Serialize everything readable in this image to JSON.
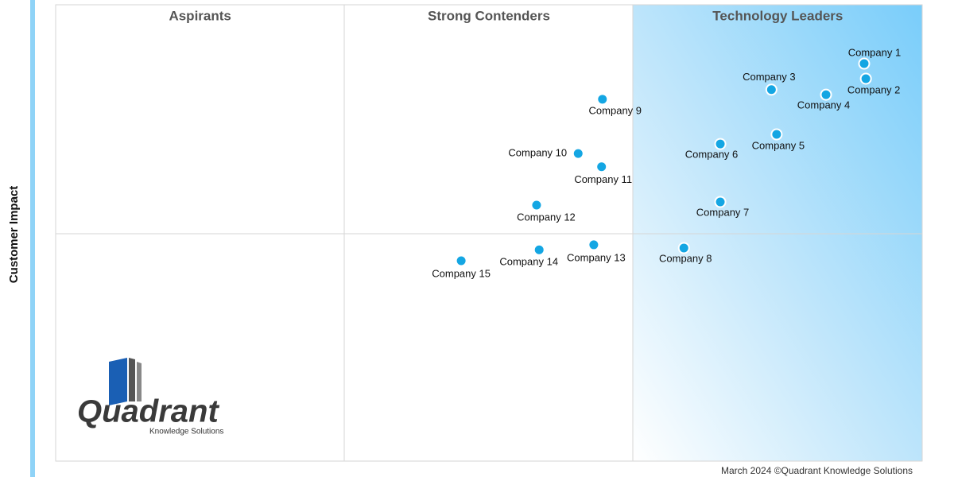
{
  "chart_data": {
    "type": "scatter",
    "quadrants": [
      "Aspirants",
      "Strong Contenders",
      "Technology Leaders"
    ],
    "y_label": "Customer Impact",
    "xlim": [
      0,
      100
    ],
    "ylim": [
      0,
      100
    ],
    "color": "#14a6e3",
    "series": [
      {
        "name": null,
        "labels": [
          "Company 1",
          "Company 2",
          "Company 3",
          "Company 4",
          "Company 5",
          "Company 6",
          "Company 7",
          "Company 8",
          "Company 9",
          "Company 10",
          "Company 11",
          "Company 12",
          "Company 13",
          "Company 14",
          "Company 15"
        ],
        "x": [
          93.3,
          93.5,
          82.6,
          88.9,
          83.2,
          76.7,
          76.7,
          72.5,
          63.1,
          60.3,
          63.0,
          55.5,
          62.1,
          55.8,
          46.8
        ],
        "values": [
          87.1,
          83.8,
          81.4,
          80.3,
          71.6,
          69.5,
          56.8,
          46.7,
          79.3,
          67.4,
          64.5,
          56.1,
          47.4,
          46.3,
          43.9
        ]
      }
    ]
  },
  "logo": {
    "name": "Quadrant",
    "tagline": "Knowledge Solutions"
  },
  "footer": "March 2024 ©Quadrant Knowledge Solutions"
}
